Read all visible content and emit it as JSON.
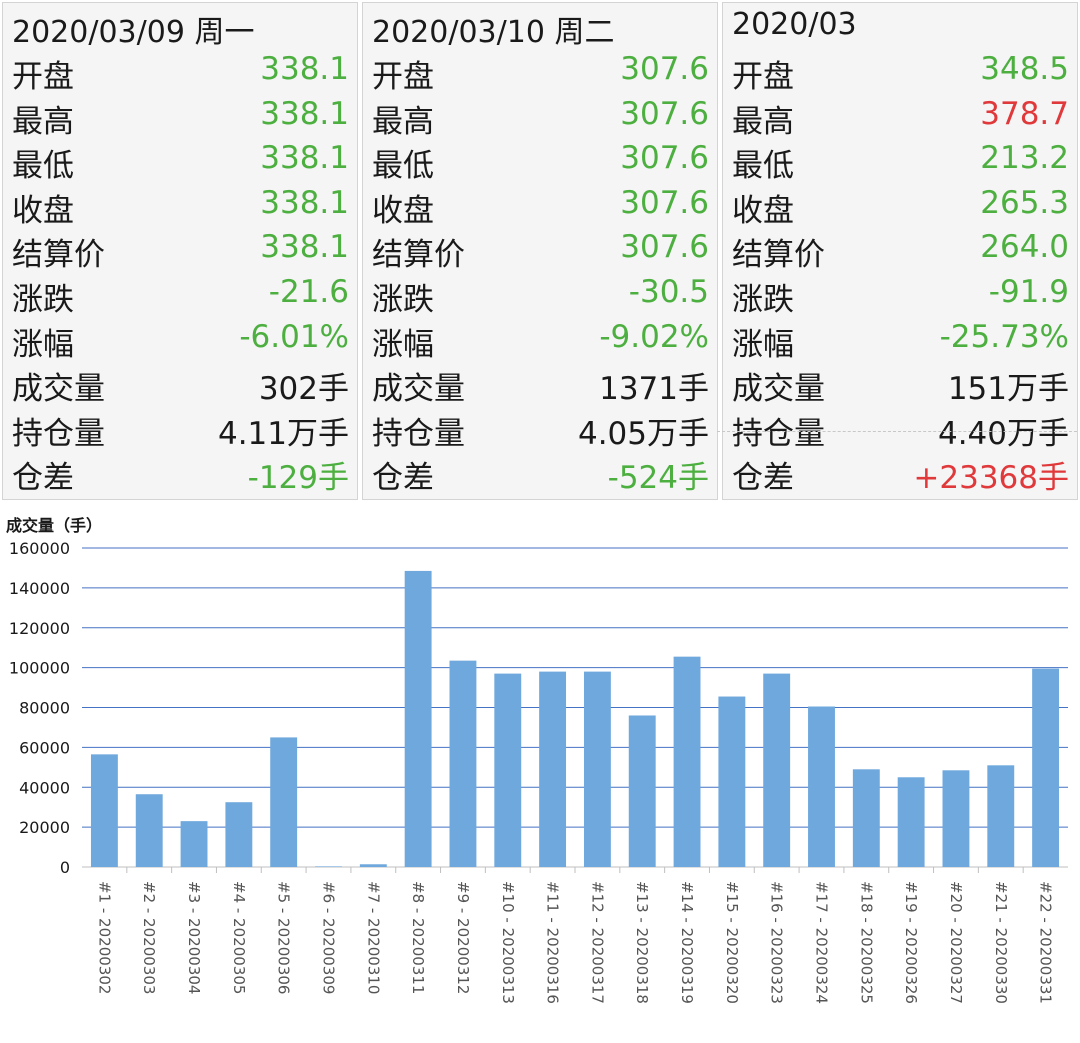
{
  "panels": [
    {
      "date": "2020/03/09 周一",
      "rows": [
        {
          "label": "开盘",
          "value": "338.1",
          "color": "green"
        },
        {
          "label": "最高",
          "value": "338.1",
          "color": "green"
        },
        {
          "label": "最低",
          "value": "338.1",
          "color": "green"
        },
        {
          "label": "收盘",
          "value": "338.1",
          "color": "green"
        },
        {
          "label": "结算价",
          "value": "338.1",
          "color": "green"
        },
        {
          "label": "涨跌",
          "value": "-21.6",
          "color": "green"
        },
        {
          "label": "涨幅",
          "value": "-6.01%",
          "color": "green"
        },
        {
          "label": "成交量",
          "value": "302手",
          "color": "dark"
        },
        {
          "label": "持仓量",
          "value": "4.11万手",
          "color": "dark"
        },
        {
          "label": "仓差",
          "value": "-129手",
          "color": "green"
        }
      ]
    },
    {
      "date": "2020/03/10 周二",
      "rows": [
        {
          "label": "开盘",
          "value": "307.6",
          "color": "green"
        },
        {
          "label": "最高",
          "value": "307.6",
          "color": "green"
        },
        {
          "label": "最低",
          "value": "307.6",
          "color": "green"
        },
        {
          "label": "收盘",
          "value": "307.6",
          "color": "green"
        },
        {
          "label": "结算价",
          "value": "307.6",
          "color": "green"
        },
        {
          "label": "涨跌",
          "value": "-30.5",
          "color": "green"
        },
        {
          "label": "涨幅",
          "value": "-9.02%",
          "color": "green"
        },
        {
          "label": "成交量",
          "value": "1371手",
          "color": "dark"
        },
        {
          "label": "持仓量",
          "value": "4.05万手",
          "color": "dark"
        },
        {
          "label": "仓差",
          "value": "-524手",
          "color": "green"
        }
      ]
    },
    {
      "date": "2020/03",
      "rows": [
        {
          "label": "开盘",
          "value": "348.5",
          "color": "green"
        },
        {
          "label": "最高",
          "value": "378.7",
          "color": "red"
        },
        {
          "label": "最低",
          "value": "213.2",
          "color": "green"
        },
        {
          "label": "收盘",
          "value": "265.3",
          "color": "green"
        },
        {
          "label": "结算价",
          "value": "264.0",
          "color": "green"
        },
        {
          "label": "涨跌",
          "value": "-91.9",
          "color": "green"
        },
        {
          "label": "涨幅",
          "value": "-25.73%",
          "color": "green"
        },
        {
          "label": "成交量",
          "value": "151万手",
          "color": "dark"
        },
        {
          "label": "持仓量",
          "value": "4.40万手",
          "color": "dark"
        },
        {
          "label": "仓差",
          "value": "+23368手",
          "color": "red"
        }
      ]
    }
  ],
  "colors": {
    "green": "#4caf3f",
    "red": "#e0393b",
    "dark": "#1a1a1a",
    "bar": "#6fa8dc",
    "grid": "#4472c4"
  },
  "chart_data": {
    "type": "bar",
    "title": "成交量（手）",
    "ylabel": "成交量（手）",
    "ylim": [
      0,
      160000
    ],
    "yticks": [
      0,
      20000,
      40000,
      60000,
      80000,
      100000,
      120000,
      140000,
      160000
    ],
    "grid": true,
    "categories": [
      "#1 - 20200302",
      "#2 - 20200303",
      "#3 - 20200304",
      "#4 - 20200305",
      "#5 - 20200306",
      "#6 - 20200309",
      "#7 - 20200310",
      "#8 - 20200311",
      "#9 - 20200312",
      "#10 - 20200313",
      "#11 - 20200316",
      "#12 - 20200317",
      "#13 - 20200318",
      "#14 - 20200319",
      "#15 - 20200320",
      "#16 - 20200323",
      "#17 - 20200324",
      "#18 - 20200325",
      "#19 - 20200326",
      "#20 - 20200327",
      "#21 - 20200330",
      "#22 - 20200331"
    ],
    "values": [
      56500,
      36500,
      23000,
      32500,
      65000,
      302,
      1371,
      148500,
      103500,
      97000,
      98000,
      98000,
      76000,
      105500,
      85500,
      97000,
      80500,
      49000,
      45000,
      48500,
      51000,
      99500
    ]
  }
}
